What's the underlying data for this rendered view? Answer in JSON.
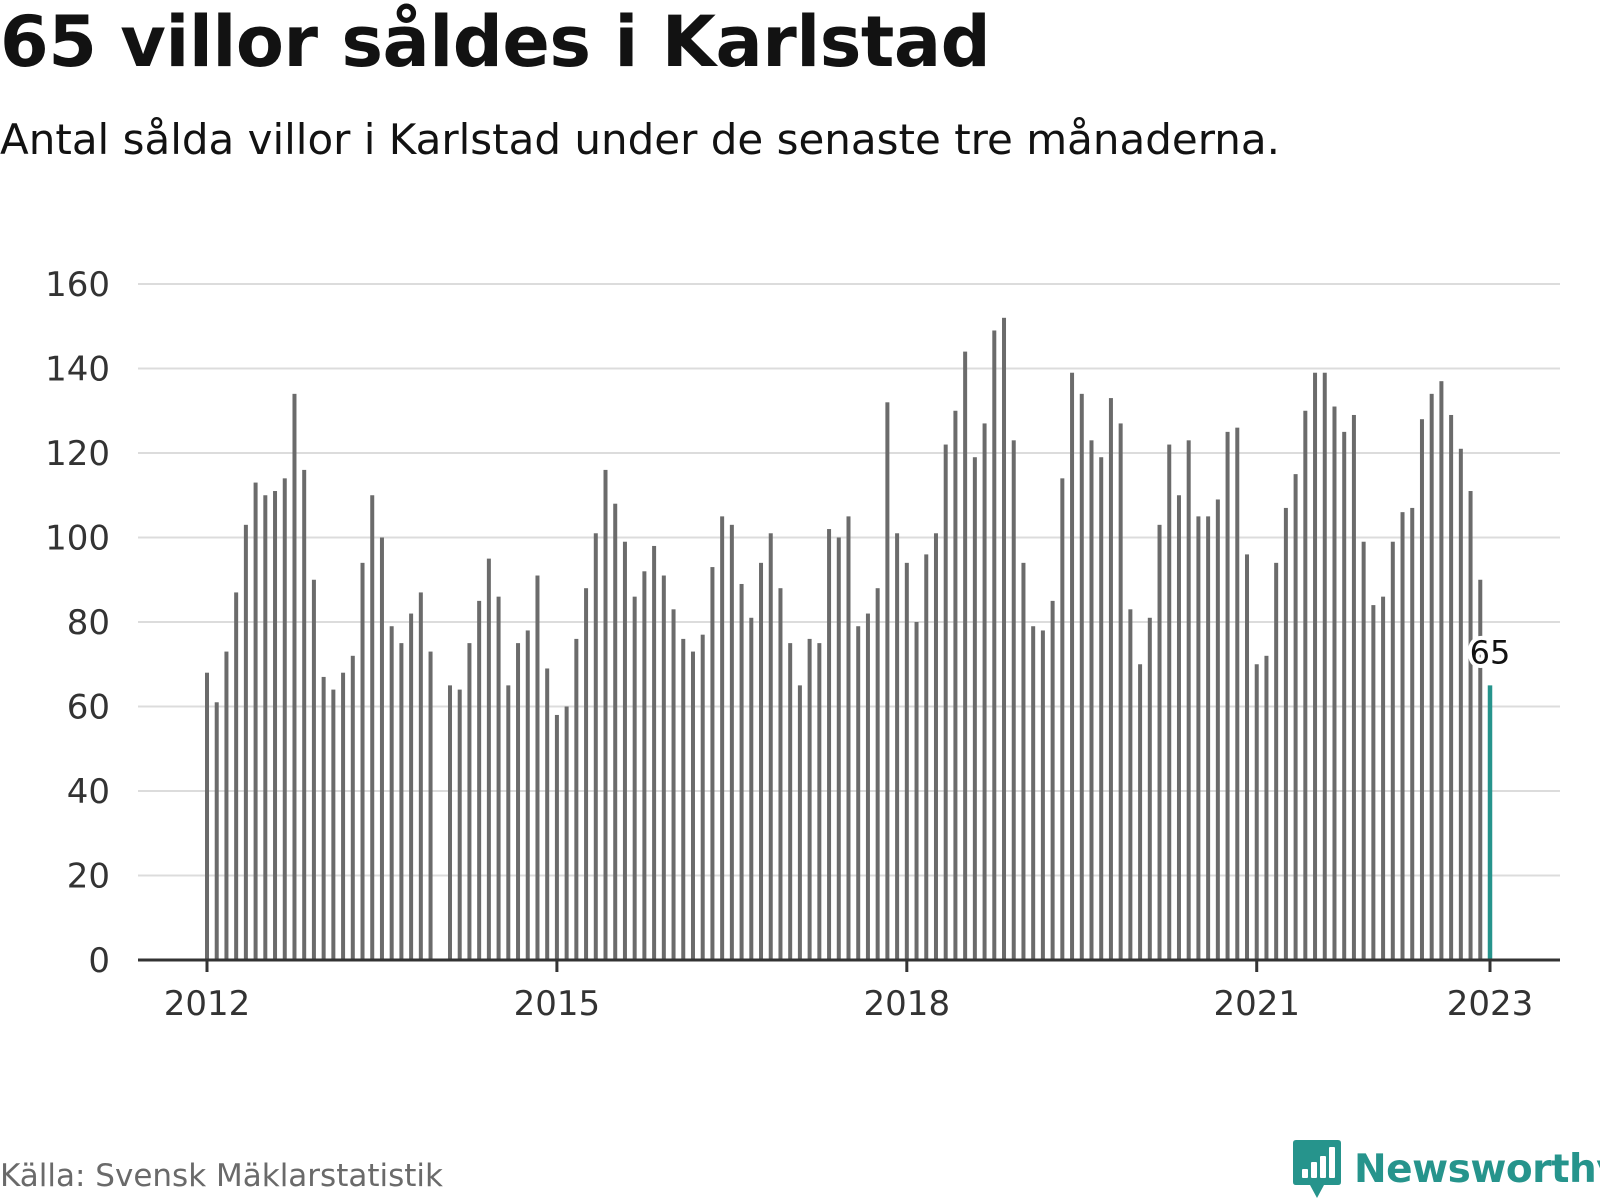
{
  "header": {
    "title": "65 villor såldes i Karlstad",
    "subtitle": "Antal sålda villor i Karlstad under de senaste tre månaderna."
  },
  "footer": {
    "source": "Källa: Svensk Mäklarstatistik",
    "brand": "Newsworthy",
    "brand_icon": "newsworthy-logo-icon"
  },
  "colors": {
    "bar": "#6b6b6b",
    "highlight": "#26948c",
    "grid": "#dcdcdc",
    "axis": "#333333",
    "text": "#121212"
  },
  "chart_data": {
    "type": "bar",
    "title": "65 villor såldes i Karlstad",
    "subtitle": "Antal sålda villor i Karlstad under de senaste tre månaderna.",
    "xlabel": "",
    "ylabel": "",
    "x_start": "2012-01",
    "x_ticks": [
      {
        "label": "2012",
        "month": "2012-01"
      },
      {
        "label": "2015",
        "month": "2015-01"
      },
      {
        "label": "2018",
        "month": "2018-01"
      },
      {
        "label": "2021",
        "month": "2021-01"
      },
      {
        "label": "2023",
        "month": "2023-01"
      }
    ],
    "y_ticks": [
      0,
      20,
      40,
      60,
      80,
      100,
      120,
      140,
      160
    ],
    "ylim": [
      0,
      160
    ],
    "grid": true,
    "highlight": {
      "month": "2023-01",
      "value": 65,
      "label": "65"
    },
    "values": [
      68,
      61,
      73,
      87,
      103,
      113,
      110,
      111,
      114,
      134,
      116,
      90,
      67,
      64,
      68,
      72,
      94,
      110,
      100,
      79,
      75,
      82,
      87,
      73,
      0,
      65,
      64,
      75,
      85,
      95,
      86,
      65,
      75,
      78,
      91,
      69,
      58,
      60,
      76,
      88,
      101,
      116,
      108,
      99,
      86,
      92,
      98,
      91,
      83,
      76,
      73,
      77,
      93,
      105,
      103,
      89,
      81,
      94,
      101,
      88,
      75,
      65,
      76,
      75,
      102,
      100,
      105,
      79,
      82,
      88,
      132,
      101,
      94,
      80,
      96,
      101,
      122,
      130,
      144,
      119,
      127,
      149,
      152,
      123,
      94,
      79,
      78,
      85,
      114,
      139,
      134,
      123,
      119,
      133,
      127,
      83,
      70,
      81,
      103,
      122,
      110,
      123,
      105,
      105,
      109,
      125,
      126,
      96,
      70,
      72,
      94,
      107,
      115,
      130,
      139,
      139,
      131,
      125,
      129,
      99,
      84,
      86,
      99,
      106,
      107,
      128,
      134,
      137,
      129,
      121,
      111,
      90,
      65
    ]
  }
}
